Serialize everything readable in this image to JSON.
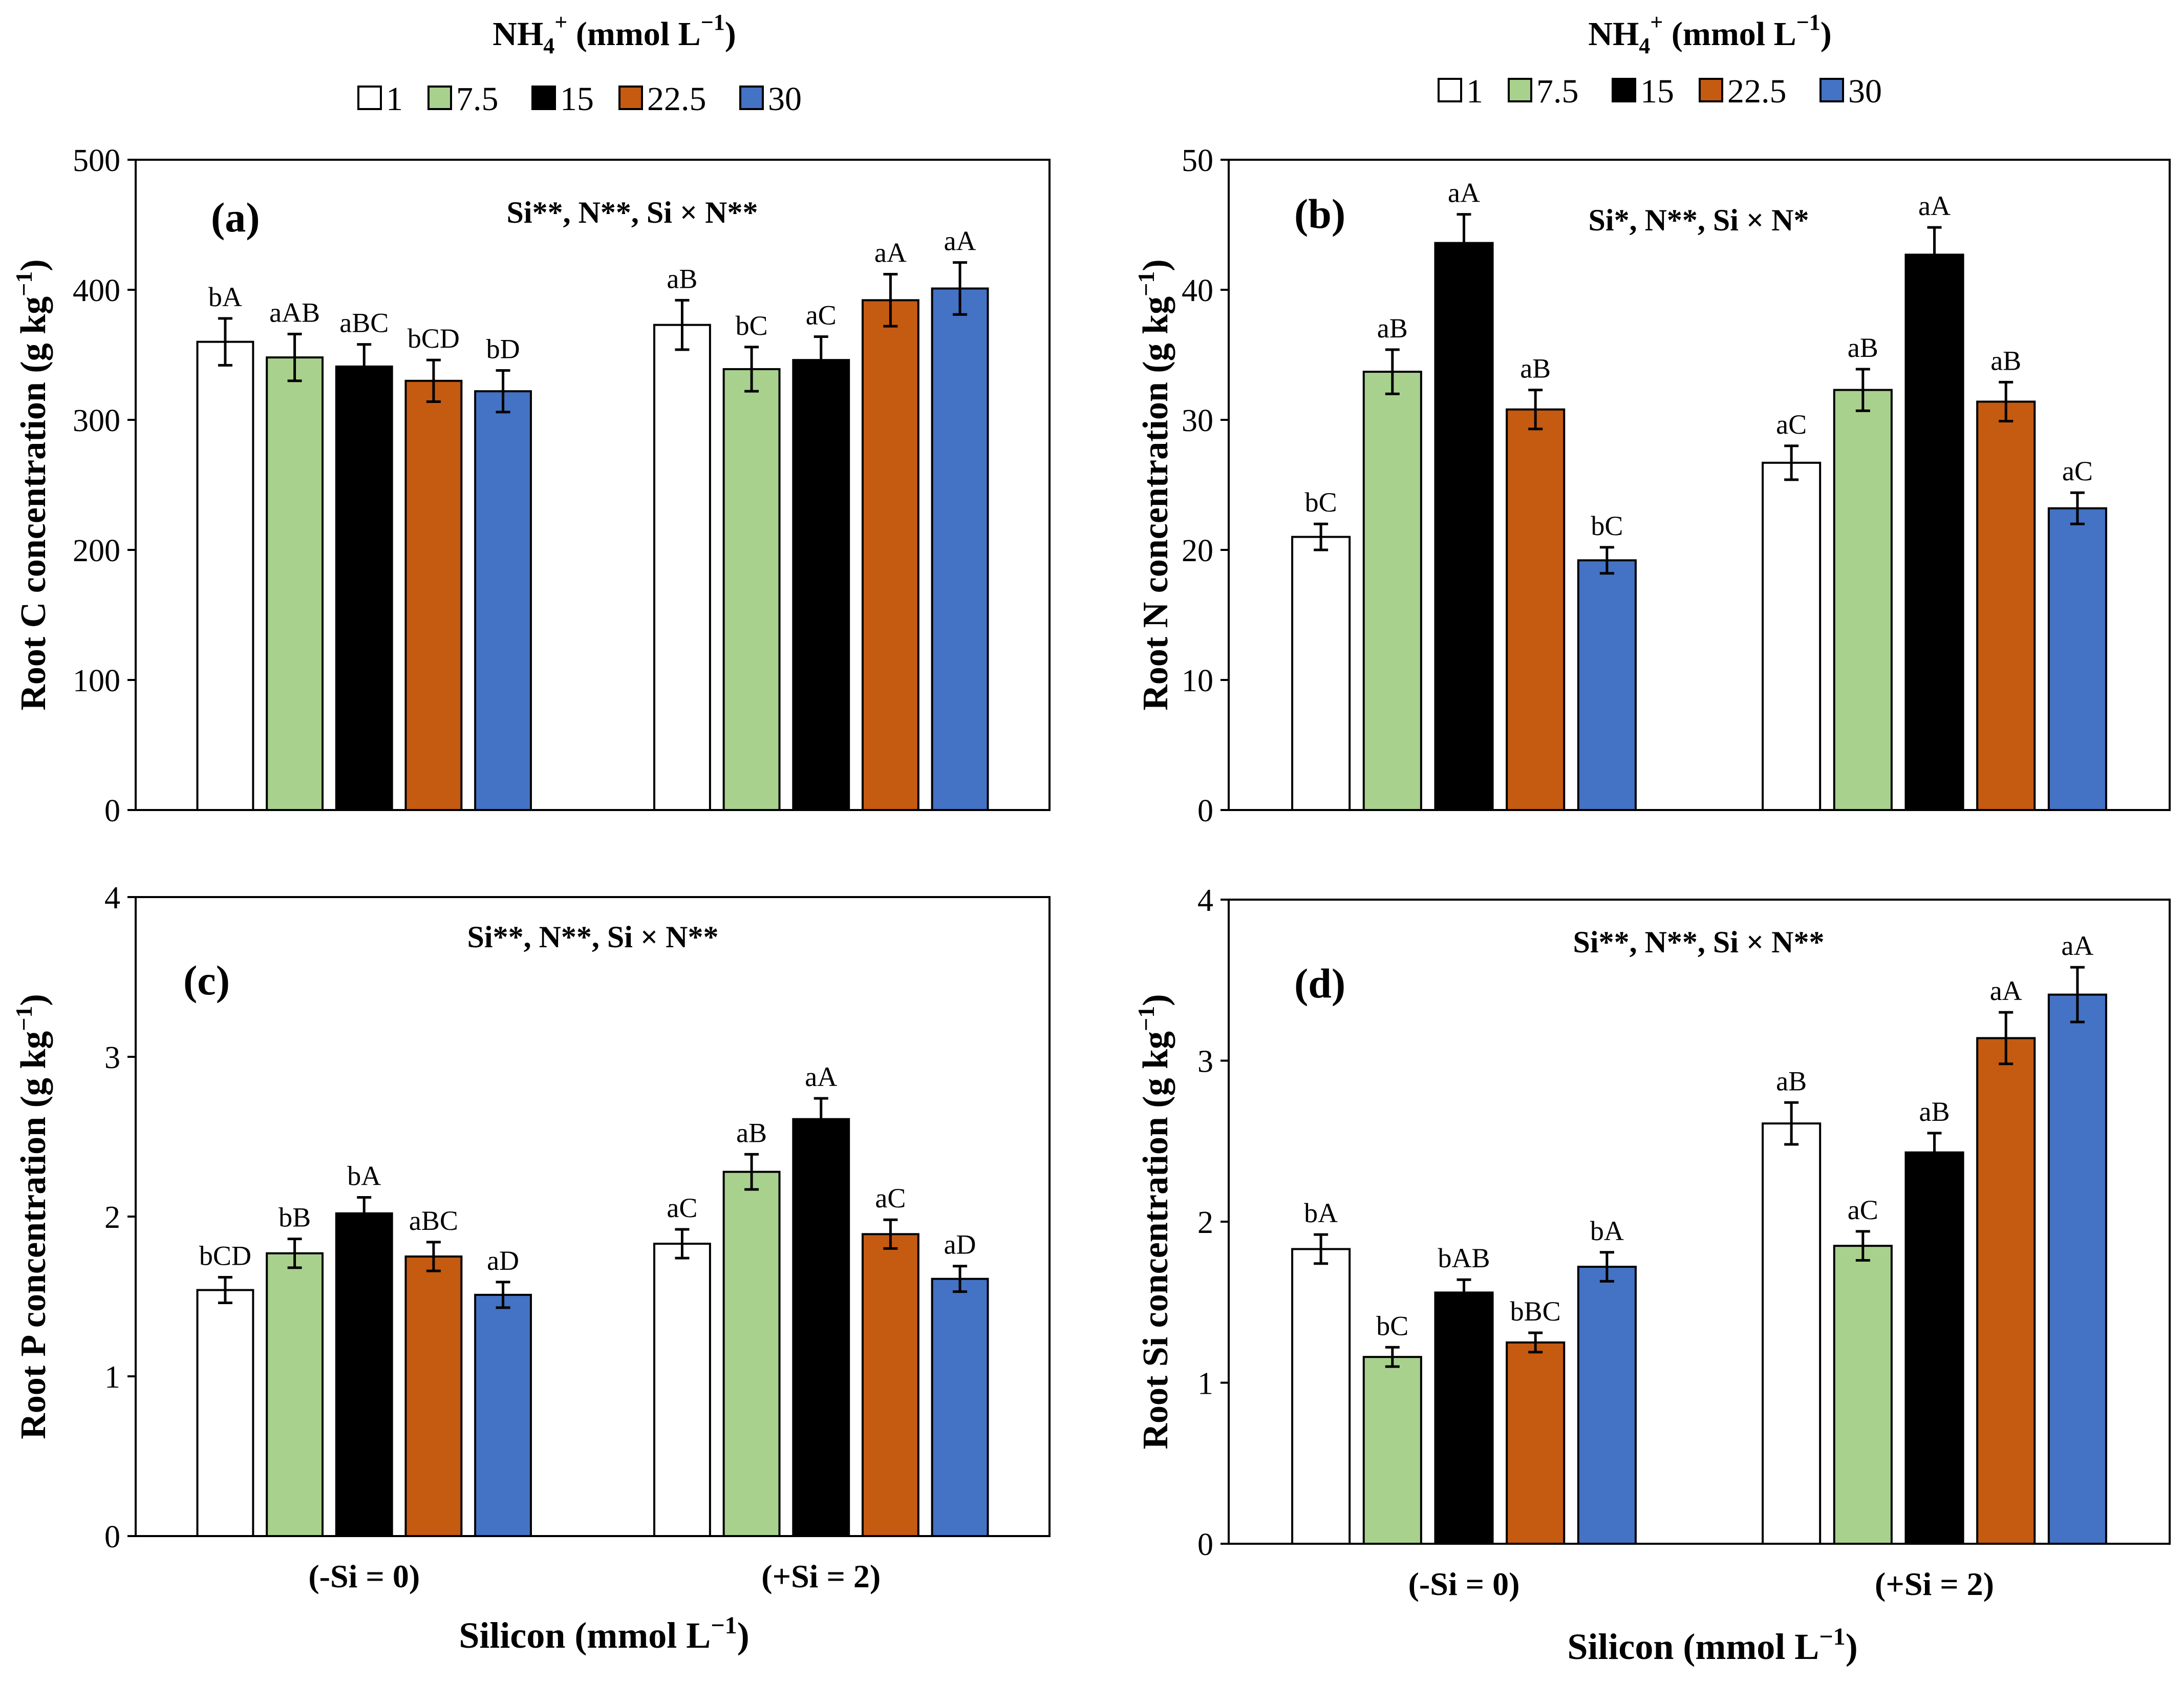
{
  "legend": {
    "title_base": "NH",
    "title_sub": "4",
    "title_sup": "+",
    "title_unit_open": " (mmol L",
    "title_unit_exp": "−1",
    "title_unit_close": ")",
    "entries": [
      {
        "label": "1",
        "color": "#ffffff"
      },
      {
        "label": "7.5",
        "color": "#a9d18e"
      },
      {
        "label": "15",
        "color": "#000000"
      },
      {
        "label": "22.5",
        "color": "#c55a11"
      },
      {
        "label": "30",
        "color": "#4472c4"
      }
    ]
  },
  "x_axis": {
    "title_prefix": "Silicon (mmol L",
    "title_exp": "−1",
    "title_suffix": ")"
  },
  "chart_data": [
    {
      "type": "bar",
      "panel": "(a)",
      "annotation": "Si**, N**, Si × N**",
      "ylabel_prefix": "Root C concentration (g kg",
      "ylabel_exp": "−1",
      "ylabel_suffix": ")",
      "ylim": [
        0,
        500
      ],
      "yticks": [
        0,
        100,
        200,
        300,
        400,
        500
      ],
      "categories": [
        "(-Si = 0)",
        "(+Si = 2)"
      ],
      "series": [
        {
          "name": "1",
          "values": [
            360,
            373
          ],
          "errors": [
            18,
            19
          ],
          "letters": [
            "bA",
            "aB"
          ]
        },
        {
          "name": "7.5",
          "values": [
            348,
            339
          ],
          "errors": [
            18,
            17
          ],
          "letters": [
            "aAB",
            "bC"
          ]
        },
        {
          "name": "15",
          "values": [
            341,
            346
          ],
          "errors": [
            17,
            18
          ],
          "letters": [
            "aBC",
            "aC"
          ]
        },
        {
          "name": "22.5",
          "values": [
            330,
            392
          ],
          "errors": [
            16,
            20
          ],
          "letters": [
            "bCD",
            "aA"
          ]
        },
        {
          "name": "30",
          "values": [
            322,
            401
          ],
          "errors": [
            16,
            20
          ],
          "letters": [
            "bD",
            "aA"
          ]
        }
      ]
    },
    {
      "type": "bar",
      "panel": "(b)",
      "annotation": "Si*, N**, Si × N*",
      "ylabel_prefix": "Root N concentration (g kg",
      "ylabel_exp": "−1",
      "ylabel_suffix": ")",
      "ylim": [
        0,
        50
      ],
      "yticks": [
        0,
        10,
        20,
        30,
        40,
        50
      ],
      "categories": [
        "(-Si = 0)",
        "(+Si = 2)"
      ],
      "series": [
        {
          "name": "1",
          "values": [
            21,
            26.7
          ],
          "errors": [
            1.0,
            1.3
          ],
          "letters": [
            "bC",
            "aC"
          ]
        },
        {
          "name": "7.5",
          "values": [
            33.7,
            32.3
          ],
          "errors": [
            1.7,
            1.6
          ],
          "letters": [
            "aB",
            "aB"
          ]
        },
        {
          "name": "15",
          "values": [
            43.6,
            42.7
          ],
          "errors": [
            2.2,
            2.1
          ],
          "letters": [
            "aA",
            "aA"
          ]
        },
        {
          "name": "22.5",
          "values": [
            30.8,
            31.4
          ],
          "errors": [
            1.5,
            1.5
          ],
          "letters": [
            "aB",
            "aB"
          ]
        },
        {
          "name": "30",
          "values": [
            19.2,
            23.2
          ],
          "errors": [
            1.0,
            1.2
          ],
          "letters": [
            "bC",
            "aC"
          ]
        }
      ]
    },
    {
      "type": "bar",
      "panel": "(c)",
      "annotation": "Si**, N**, Si × N**",
      "ylabel_prefix": "Root P concentration (g kg",
      "ylabel_exp": "−1",
      "ylabel_suffix": ")",
      "ylim": [
        0,
        4
      ],
      "yticks": [
        0,
        1,
        2,
        3,
        4
      ],
      "categories": [
        "(-Si = 0)",
        "(+Si = 2)"
      ],
      "series": [
        {
          "name": "1",
          "values": [
            1.54,
            1.83
          ],
          "errors": [
            0.08,
            0.09
          ],
          "letters": [
            "bCD",
            "aC"
          ]
        },
        {
          "name": "7.5",
          "values": [
            1.77,
            2.28
          ],
          "errors": [
            0.09,
            0.11
          ],
          "letters": [
            "bB",
            "aB"
          ]
        },
        {
          "name": "15",
          "values": [
            2.02,
            2.61
          ],
          "errors": [
            0.1,
            0.13
          ],
          "letters": [
            "bA",
            "aA"
          ]
        },
        {
          "name": "22.5",
          "values": [
            1.75,
            1.89
          ],
          "errors": [
            0.09,
            0.09
          ],
          "letters": [
            "aBC",
            "aC"
          ]
        },
        {
          "name": "30",
          "values": [
            1.51,
            1.61
          ],
          "errors": [
            0.08,
            0.08
          ],
          "letters": [
            "aD",
            "aD"
          ]
        }
      ]
    },
    {
      "type": "bar",
      "panel": "(d)",
      "annotation": "Si**, N**, Si × N**",
      "ylabel_prefix": "Root Si concentration (g kg",
      "ylabel_exp": "−1",
      "ylabel_suffix": ")",
      "ylim": [
        0,
        4
      ],
      "yticks": [
        0,
        1,
        2,
        3,
        4
      ],
      "categories": [
        "(-Si = 0)",
        "(+Si = 2)"
      ],
      "series": [
        {
          "name": "1",
          "values": [
            1.83,
            2.61
          ],
          "errors": [
            0.09,
            0.13
          ],
          "letters": [
            "bA",
            "aB"
          ]
        },
        {
          "name": "7.5",
          "values": [
            1.16,
            1.85
          ],
          "errors": [
            0.06,
            0.09
          ],
          "letters": [
            "bC",
            "aC"
          ]
        },
        {
          "name": "15",
          "values": [
            1.56,
            2.43
          ],
          "errors": [
            0.08,
            0.12
          ],
          "letters": [
            "bAB",
            "aB"
          ]
        },
        {
          "name": "22.5",
          "values": [
            1.25,
            3.14
          ],
          "errors": [
            0.06,
            0.16
          ],
          "letters": [
            "bBC",
            "aA"
          ]
        },
        {
          "name": "30",
          "values": [
            1.72,
            3.41
          ],
          "errors": [
            0.09,
            0.17
          ],
          "letters": [
            "bA",
            "aA"
          ]
        }
      ]
    }
  ]
}
